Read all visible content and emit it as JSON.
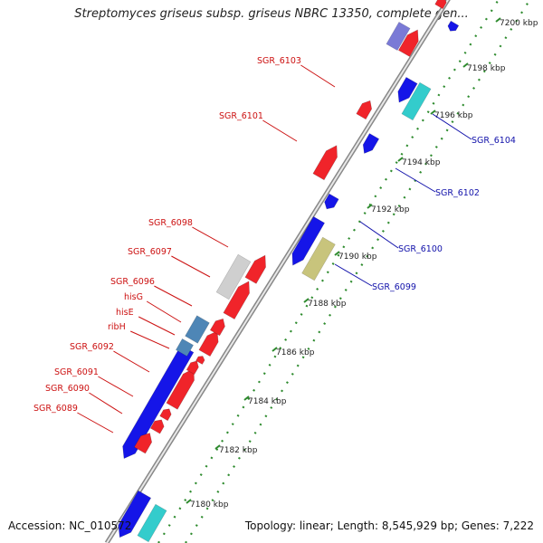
{
  "title": "Streptomyces griseus subsp. griseus NBRC 13350, complete gen...",
  "accession": "Accession: NC_010572",
  "topology": "Topology: linear; Length: 8,545,929 bp; Genes: 7,222",
  "colors": {
    "forward_gene": "#f0242a",
    "reverse_gene": "#1515e8",
    "backbone": "#aaaaaa",
    "ruler": "#2e8b2e",
    "label_left": "#cc1111",
    "label_right": "#1111aa",
    "cyan_gene": "#33cccc",
    "steelblue_gene": "#4e86b6",
    "khaki_gene": "#c8c47c",
    "grey_gene": "#cfcfcf",
    "violet_gene": "#7a7ad6"
  },
  "ruler_ticks": [
    "7180 kbp",
    "7182 kbp",
    "7184 kbp",
    "7186 kbp",
    "7188 kbp",
    "7190 kbp",
    "7192 kbp",
    "7194 kbp",
    "7196 kbp",
    "7198 kbp",
    "7200 kbp"
  ],
  "left_labels": [
    "SGR_6103",
    "SGR_6101",
    "SGR_6098",
    "SGR_6097",
    "SGR_6096",
    "hisG",
    "hisE",
    "ribH",
    "SGR_6092",
    "SGR_6091",
    "SGR_6090",
    "SGR_6089"
  ],
  "right_labels": [
    "SGR_6104",
    "SGR_6102",
    "SGR_6100",
    "SGR_6099"
  ]
}
